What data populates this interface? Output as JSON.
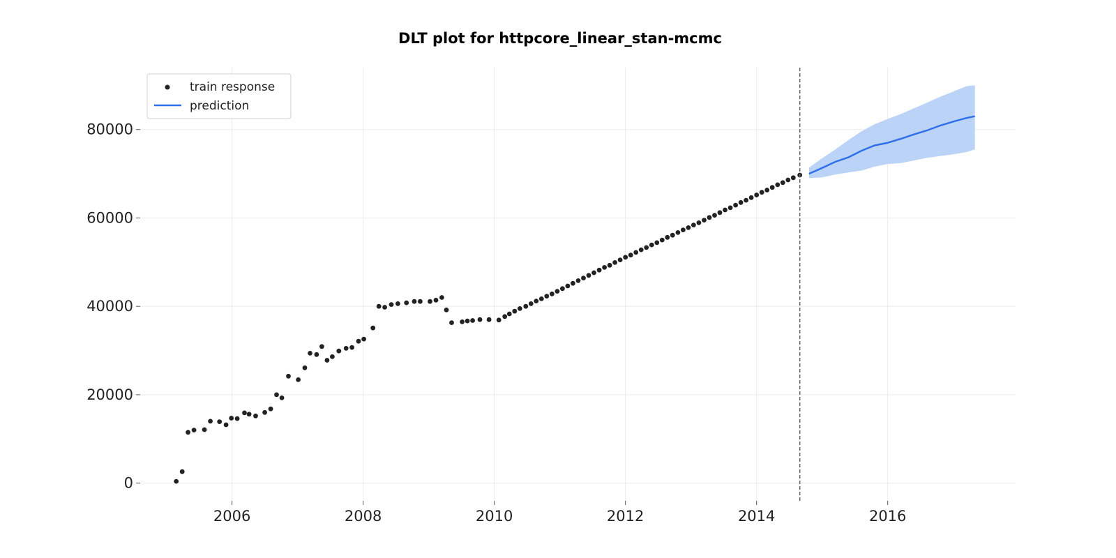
{
  "chart_data": {
    "type": "line",
    "title": "DLT plot for httpcore_linear_stan-mcmc",
    "xlabel": "",
    "ylabel": "",
    "xlim": [
      2004.6,
      2017.95
    ],
    "ylim": [
      -4000,
      94000
    ],
    "x_ticks": [
      2006,
      2008,
      2010,
      2012,
      2014,
      2016
    ],
    "x_tick_labels": [
      "2006",
      "2008",
      "2010",
      "2012",
      "2014",
      "2016"
    ],
    "y_ticks": [
      0,
      20000,
      40000,
      60000,
      80000
    ],
    "y_tick_labels": [
      "0",
      "20000",
      "40000",
      "60000",
      "80000"
    ],
    "grid": true,
    "legend": {
      "position": "top-left",
      "entries": [
        "train response",
        "prediction"
      ]
    },
    "colors": {
      "points": "#222222",
      "prediction": "#2f6fe8",
      "band": "#bcd3f8",
      "split_line": "#666666",
      "grid": "#ebebeb"
    },
    "split_date": 2014.66,
    "train_response": {
      "x": [
        2005.15,
        2005.24,
        2005.33,
        2005.42,
        2005.58,
        2005.67,
        2005.81,
        2005.91,
        2005.99,
        2006.08,
        2006.19,
        2006.26,
        2006.36,
        2006.5,
        2006.59,
        2006.68,
        2006.76,
        2006.86,
        2007.01,
        2007.11,
        2007.19,
        2007.29,
        2007.37,
        2007.45,
        2007.53,
        2007.63,
        2007.74,
        2007.83,
        2007.93,
        2008.01,
        2008.15,
        2008.24,
        2008.33,
        2008.43,
        2008.53,
        2008.66,
        2008.78,
        2008.87,
        2009.02,
        2009.11,
        2009.2,
        2009.27,
        2009.35,
        2009.51,
        2009.59,
        2009.67,
        2009.78,
        2009.92,
        2010.07,
        2010.16,
        2010.23,
        2010.31,
        2010.39,
        2010.48,
        2010.56,
        2010.64,
        2010.72,
        2010.8,
        2010.88,
        2010.96,
        2011.04,
        2011.12,
        2011.2,
        2011.28,
        2011.36,
        2011.44,
        2011.52,
        2011.6,
        2011.68,
        2011.76,
        2011.84,
        2011.92,
        2012.0,
        2012.08,
        2012.16,
        2012.24,
        2012.32,
        2012.4,
        2012.48,
        2012.56,
        2012.64,
        2012.72,
        2012.8,
        2012.88,
        2012.96,
        2013.04,
        2013.12,
        2013.2,
        2013.28,
        2013.36,
        2013.44,
        2013.52,
        2013.6,
        2013.68,
        2013.76,
        2013.84,
        2013.92,
        2014.0,
        2014.08,
        2014.16,
        2014.24,
        2014.32,
        2014.4,
        2014.48,
        2014.56,
        2014.66
      ],
      "y": [
        400,
        2600,
        11500,
        12000,
        12100,
        14000,
        13900,
        13200,
        14700,
        14600,
        15900,
        15600,
        15200,
        16000,
        16800,
        20000,
        19300,
        24200,
        23400,
        26100,
        29400,
        29100,
        30900,
        27800,
        28600,
        29900,
        30500,
        30700,
        32100,
        32600,
        35100,
        40000,
        39800,
        40400,
        40600,
        40800,
        41100,
        41100,
        41100,
        41400,
        42000,
        39200,
        36300,
        36500,
        36700,
        36800,
        37000,
        37000,
        36900,
        37700,
        38300,
        38900,
        39500,
        40000,
        40600,
        41200,
        41700,
        42300,
        42800,
        43400,
        44000,
        44600,
        45200,
        45800,
        46400,
        47000,
        47600,
        48200,
        48800,
        49300,
        49900,
        50500,
        51100,
        51600,
        52200,
        52800,
        53300,
        53900,
        54400,
        55000,
        55600,
        56100,
        56700,
        57300,
        57800,
        58400,
        58900,
        59500,
        60100,
        60600,
        61200,
        61800,
        62300,
        62900,
        63500,
        64000,
        64600,
        65200,
        65800,
        66300,
        66900,
        67500,
        68000,
        68600,
        69100,
        69700
      ]
    },
    "prediction": {
      "x": [
        2014.8,
        2015.0,
        2015.2,
        2015.4,
        2015.6,
        2015.8,
        2016.0,
        2016.2,
        2016.4,
        2016.6,
        2016.8,
        2017.0,
        2017.2,
        2017.33
      ],
      "y": [
        70000,
        71300,
        72700,
        73700,
        75200,
        76400,
        77000,
        77900,
        78900,
        79800,
        80900,
        81800,
        82600,
        83000
      ],
      "lower": [
        69000,
        69200,
        69800,
        70300,
        70700,
        71600,
        72200,
        72400,
        73000,
        73600,
        74000,
        74400,
        74900,
        75500
      ],
      "upper": [
        71400,
        73500,
        75500,
        77600,
        79600,
        81200,
        82400,
        83500,
        84800,
        86100,
        87400,
        88600,
        89800,
        90000
      ]
    }
  }
}
